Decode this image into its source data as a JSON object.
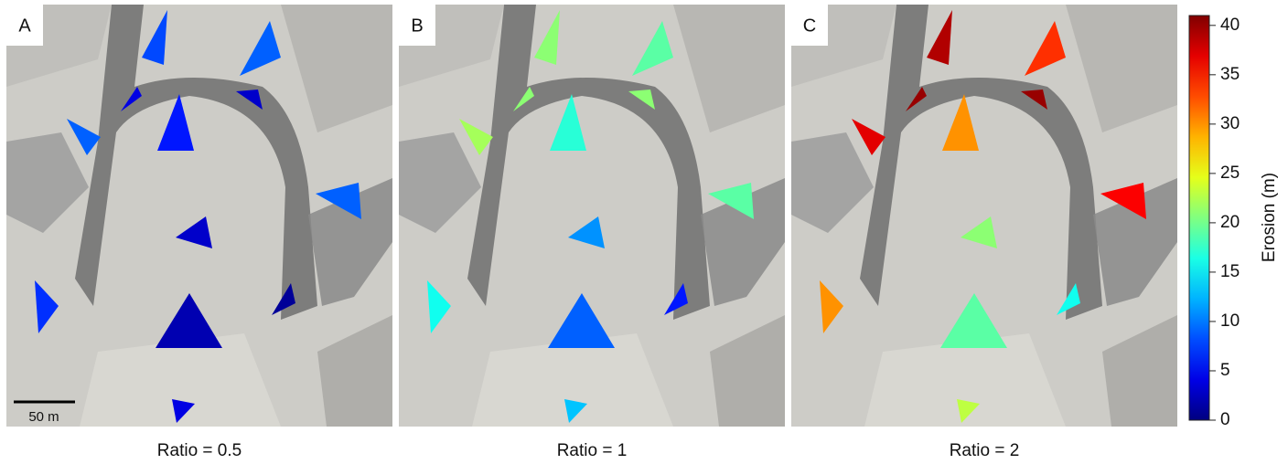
{
  "panels": [
    {
      "letter": "A",
      "caption": "Ratio = 0.5",
      "erosion": [
        8,
        9,
        6,
        9,
        9,
        3,
        7,
        2,
        1,
        4,
        4,
        3
      ]
    },
    {
      "letter": "B",
      "caption": "Ratio = 1",
      "erosion": [
        21,
        19,
        17,
        22,
        19,
        11,
        16,
        9,
        6,
        13,
        21,
        21
      ]
    },
    {
      "letter": "C",
      "caption": "Ratio = 2",
      "erosion": [
        39,
        34,
        30,
        37,
        36,
        21,
        30,
        19,
        16,
        23,
        40,
        40
      ]
    }
  ],
  "scale_bar_label": "50 m",
  "colorbar": {
    "label": "Erosion (m)",
    "lim": [
      0,
      41
    ],
    "ticks": [
      0,
      5,
      10,
      15,
      20,
      25,
      30,
      35,
      40
    ]
  }
}
